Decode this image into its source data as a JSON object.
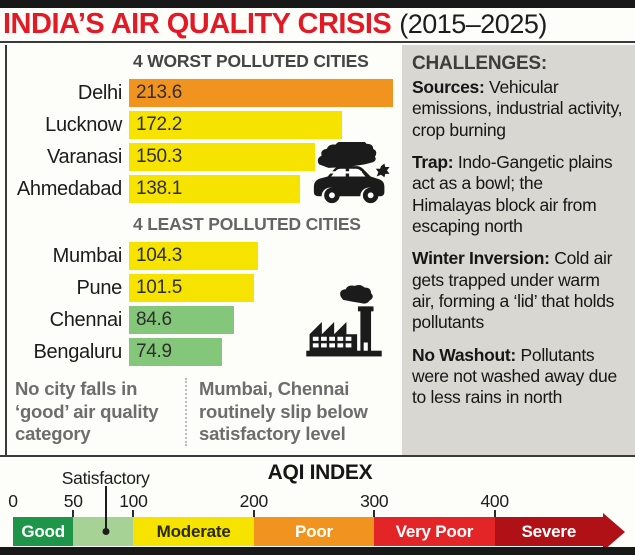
{
  "title": {
    "main": "INDIA’S AIR QUALITY CRISIS",
    "period": "(2015–2025)"
  },
  "colors": {
    "accent_red": "#e11a26",
    "bar_orange": "#f0941f",
    "bar_yellow": "#f6e400",
    "bar_green": "#85c77a",
    "panel_gray": "#d9d7d2"
  },
  "icons": [
    "car-smoke-icon",
    "factory-smoke-icon"
  ],
  "chart_data": {
    "type": "bar",
    "orientation": "horizontal",
    "value_max": 213.6,
    "groups": [
      {
        "header": "4 WORST POLLUTED CITIES",
        "header_color": "#454545",
        "categories": [
          "Delhi",
          "Lucknow",
          "Varanasi",
          "Ahmedabad"
        ],
        "values": [
          213.6,
          172.2,
          150.3,
          138.1
        ],
        "bar_colors": [
          "#f0941f",
          "#f6e400",
          "#f6e400",
          "#f6e400"
        ]
      },
      {
        "header": "4 LEAST POLLUTED CITIES",
        "header_color": "#656565",
        "categories": [
          "Mumbai",
          "Pune",
          "Chennai",
          "Bengaluru"
        ],
        "values": [
          104.3,
          101.5,
          84.6,
          74.9
        ],
        "bar_colors": [
          "#f6e400",
          "#f6e400",
          "#85c77a",
          "#85c77a"
        ]
      }
    ],
    "aqi_scale": {
      "title": "AQI INDEX",
      "axis_min": 0,
      "axis_max": 490,
      "ticks": [
        0,
        50,
        100,
        200,
        300,
        400
      ],
      "pointer": {
        "label": "Satisfactory",
        "value": 77
      },
      "segments": [
        {
          "label": "Good",
          "start": 0,
          "end": 50,
          "color": "#1f9549",
          "text_color": "#ffffff"
        },
        {
          "label": "",
          "start": 50,
          "end": 100,
          "color": "#a6d395",
          "text_color": "#1d1d1d"
        },
        {
          "label": "Moderate",
          "start": 100,
          "end": 200,
          "color": "#f6e400",
          "text_color": "#2a2a00"
        },
        {
          "label": "Poor",
          "start": 200,
          "end": 300,
          "color": "#f0931f",
          "text_color": "#ffffff"
        },
        {
          "label": "Very Poor",
          "start": 300,
          "end": 400,
          "color": "#e42527",
          "text_color": "#ffffff"
        },
        {
          "label": "Severe",
          "start": 400,
          "end": 490,
          "color": "#b01117",
          "text_color": "#ffffff",
          "arrow": true
        }
      ]
    }
  },
  "notes": [
    "No city falls in ‘good’ air quality category",
    "Mumbai, Chennai routinely slip below satisfactory level"
  ],
  "challenges": {
    "header": "CHALLENGES:",
    "items": [
      {
        "lead": "Sources:",
        "text": " Vehicular emissions, industrial activity, crop burning"
      },
      {
        "lead": "Trap:",
        "text": " Indo-Gangetic plains act as a bowl; the Himalayas block air from escaping north"
      },
      {
        "lead": "Winter Inversion:",
        "text": " Cold air gets trapped under warm air, forming a ‘lid’ that holds pollutants"
      },
      {
        "lead": "No Washout:",
        "text": " Pollutants were not washed away due to less rains in north"
      }
    ]
  }
}
